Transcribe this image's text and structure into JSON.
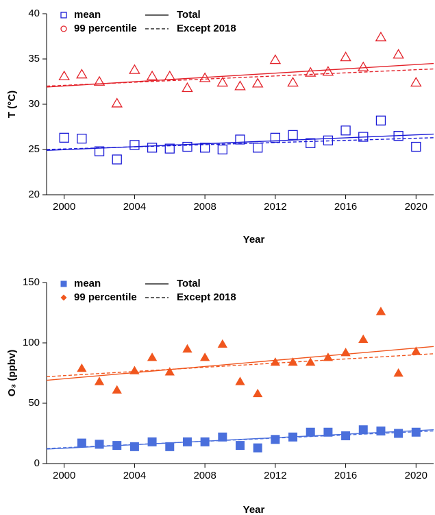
{
  "chart_data": [
    {
      "type": "scatter",
      "xlabel": "Year",
      "ylabel": "T (°C)",
      "xlim": [
        1999,
        2021
      ],
      "xticks": [
        2000,
        2004,
        2008,
        2012,
        2016,
        2020
      ],
      "ylim": [
        20,
        40
      ],
      "yticks": [
        20,
        25,
        30,
        35,
        40
      ],
      "x": [
        2000,
        2001,
        2002,
        2003,
        2004,
        2005,
        2006,
        2007,
        2008,
        2009,
        2010,
        2011,
        2012,
        2013,
        2014,
        2015,
        2016,
        2017,
        2018,
        2019,
        2020
      ],
      "series": [
        {
          "name": "mean",
          "color": "#1a1ad6",
          "marker": "square",
          "legend_marker": "square",
          "filled": false,
          "values": [
            26.3,
            26.2,
            24.8,
            23.9,
            25.5,
            25.2,
            25.1,
            25.3,
            25.2,
            25.0,
            26.1,
            25.2,
            26.3,
            26.6,
            25.7,
            26.0,
            27.1,
            26.4,
            28.2,
            26.5,
            25.3
          ]
        },
        {
          "name": "99 percentile",
          "color": "#e3222a",
          "marker": "triangle",
          "legend_marker": "circle",
          "filled": false,
          "values": [
            33.1,
            33.3,
            32.5,
            30.1,
            33.8,
            33.1,
            33.1,
            31.8,
            32.9,
            32.4,
            32.0,
            32.3,
            34.9,
            32.4,
            33.5,
            33.6,
            35.2,
            34.1,
            37.4,
            35.5,
            32.4
          ]
        }
      ],
      "trend_lines": [
        {
          "name": "Total",
          "dashed": false,
          "x": [
            1999,
            2021
          ],
          "series": [
            {
              "color": "#1a1ad6",
              "values": [
                24.9,
                26.7
              ]
            },
            {
              "color": "#e3222a",
              "values": [
                31.9,
                34.5
              ]
            }
          ]
        },
        {
          "name": "Except 2018",
          "dashed": true,
          "x": [
            1999,
            2021
          ],
          "series": [
            {
              "color": "#1a1ad6",
              "values": [
                25.0,
                26.3
              ]
            },
            {
              "color": "#e3222a",
              "values": [
                32.0,
                33.9
              ]
            }
          ]
        }
      ]
    },
    {
      "type": "scatter",
      "xlabel": "Year",
      "ylabel": "O₃ (ppbv)",
      "xlim": [
        1999,
        2021
      ],
      "xticks": [
        2000,
        2004,
        2008,
        2012,
        2016,
        2020
      ],
      "ylim": [
        0,
        150
      ],
      "yticks": [
        0,
        50,
        100,
        150
      ],
      "x": [
        2001,
        2002,
        2003,
        2004,
        2005,
        2006,
        2007,
        2008,
        2009,
        2010,
        2011,
        2012,
        2013,
        2014,
        2015,
        2016,
        2017,
        2018,
        2019,
        2020
      ],
      "series": [
        {
          "name": "mean",
          "color": "#4a6fdc",
          "marker": "square",
          "legend_marker": "square",
          "filled": true,
          "values": [
            17,
            16,
            15,
            14,
            18,
            14,
            18,
            18,
            22,
            15,
            13,
            20,
            22,
            26,
            26,
            23,
            28,
            27,
            25,
            26
          ]
        },
        {
          "name": "99 percentile",
          "color": "#f0561e",
          "marker": "triangle",
          "legend_marker": "diamond",
          "filled": true,
          "values": [
            79,
            68,
            61,
            77,
            88,
            76,
            95,
            88,
            99,
            68,
            58,
            84,
            84,
            84,
            88,
            92,
            103,
            126,
            75,
            93
          ]
        }
      ],
      "trend_lines": [
        {
          "name": "Total",
          "dashed": false,
          "x": [
            1999,
            2021
          ],
          "series": [
            {
              "color": "#4a6fdc",
              "values": [
                12,
                28
              ]
            },
            {
              "color": "#f0561e",
              "values": [
                69,
                97
              ]
            }
          ]
        },
        {
          "name": "Except 2018",
          "dashed": true,
          "x": [
            1999,
            2021
          ],
          "series": [
            {
              "color": "#4a6fdc",
              "values": [
                12.5,
                27
              ]
            },
            {
              "color": "#f0561e",
              "values": [
                72,
                91
              ]
            }
          ]
        }
      ]
    }
  ]
}
